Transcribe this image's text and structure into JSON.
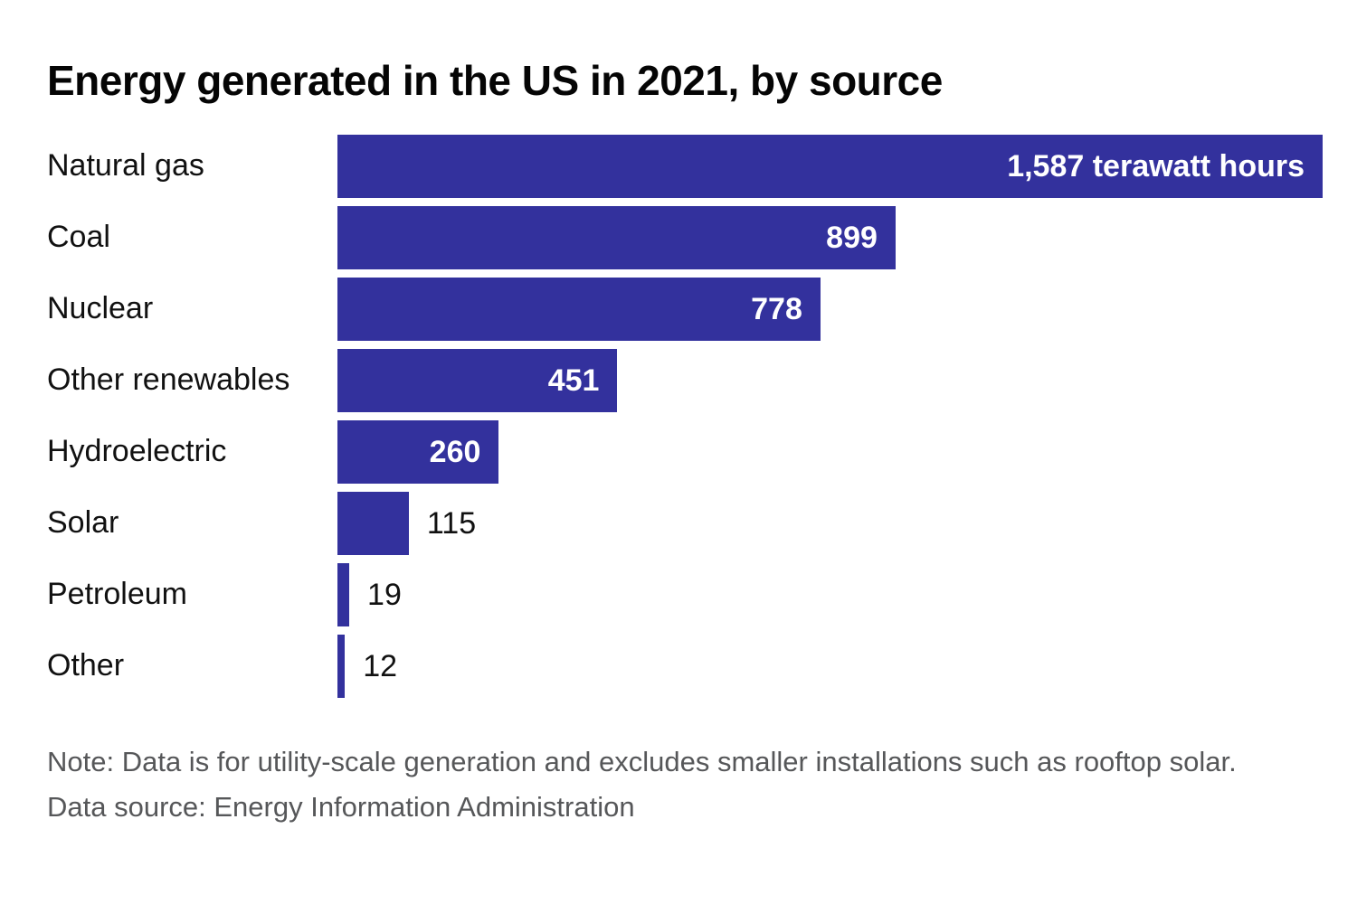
{
  "title": "Energy generated in the US in 2021, by source",
  "chart_data": {
    "type": "bar",
    "orientation": "horizontal",
    "title": "Energy generated in the US in 2021, by source",
    "categories": [
      "Natural gas",
      "Coal",
      "Nuclear",
      "Other renewables",
      "Hydroelectric",
      "Solar",
      "Petroleum",
      "Other"
    ],
    "values": [
      1587,
      899,
      778,
      451,
      260,
      115,
      19,
      12
    ],
    "value_labels": [
      "1,587 terawatt hours",
      "899",
      "778",
      "451",
      "260",
      "115",
      "19",
      "12"
    ],
    "label_inside": [
      true,
      true,
      true,
      true,
      true,
      false,
      false,
      false
    ],
    "unit": "terawatt hours",
    "xlim": [
      0,
      1587
    ],
    "grid": false,
    "legend": "none",
    "bar_color": "#33319d"
  },
  "footer": {
    "note": "Note: Data is for utility-scale generation and excludes smaller installations such as rooftop solar.",
    "source": "Data source: Energy Information Administration"
  },
  "colors": {
    "bar": "#33319d",
    "inside_value_text": "#ffffff",
    "outside_value_text": "#111111",
    "category_text": "#111111",
    "title_text": "#050505",
    "footer_text": "#565759",
    "background": "#ffffff"
  }
}
